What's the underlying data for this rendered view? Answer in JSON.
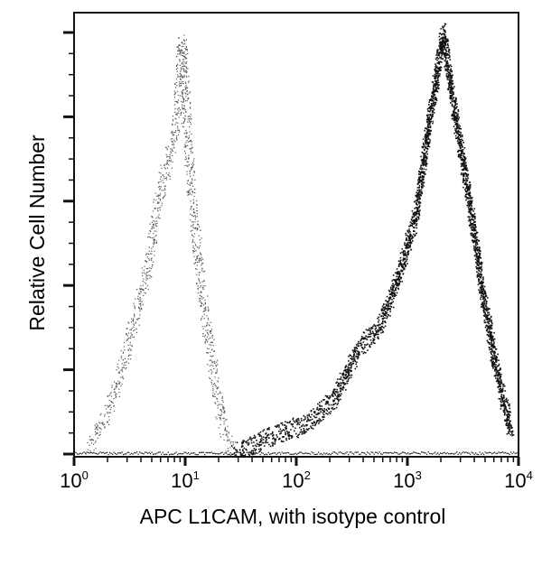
{
  "chart_data": {
    "type": "line",
    "subtype": "flow-cytometry-histogram-overlay",
    "title": "",
    "xlabel": "APC L1CAM, with isotype control",
    "ylabel": "Relative Cell Number",
    "xscale": "log",
    "xlim": [
      1,
      10000
    ],
    "ylim": [
      0,
      100
    ],
    "x_ticks": [
      {
        "base": "10",
        "exp": "0"
      },
      {
        "base": "10",
        "exp": "1"
      },
      {
        "base": "10",
        "exp": "2"
      },
      {
        "base": "10",
        "exp": "3"
      },
      {
        "base": "10",
        "exp": "4"
      }
    ],
    "y_tick_labels_shown": false,
    "y_major_ticks": 6,
    "legend": null,
    "grid": false,
    "series": [
      {
        "name": "Isotype control",
        "style": "light sparse dots",
        "color": "#555555",
        "x": [
          1.32,
          2.04,
          2.96,
          4.31,
          6.26,
          8.29,
          9.28,
          11.0,
          13.3,
          16.6,
          21.2,
          27.0
        ],
        "values": [
          2,
          11,
          25,
          42,
          65,
          78,
          98,
          67,
          44,
          25,
          8,
          1
        ]
      },
      {
        "name": "APC L1CAM",
        "style": "dense dark dots",
        "color": "#111111",
        "x": [
          27,
          59,
          125,
          219,
          350,
          562,
          815,
          1180,
          1580,
          2080,
          2750,
          3650,
          4830,
          6350,
          8450
        ],
        "values": [
          1,
          5,
          8,
          14,
          25,
          31,
          42,
          57,
          80,
          100,
          78,
          59,
          37,
          20,
          6
        ]
      }
    ]
  }
}
